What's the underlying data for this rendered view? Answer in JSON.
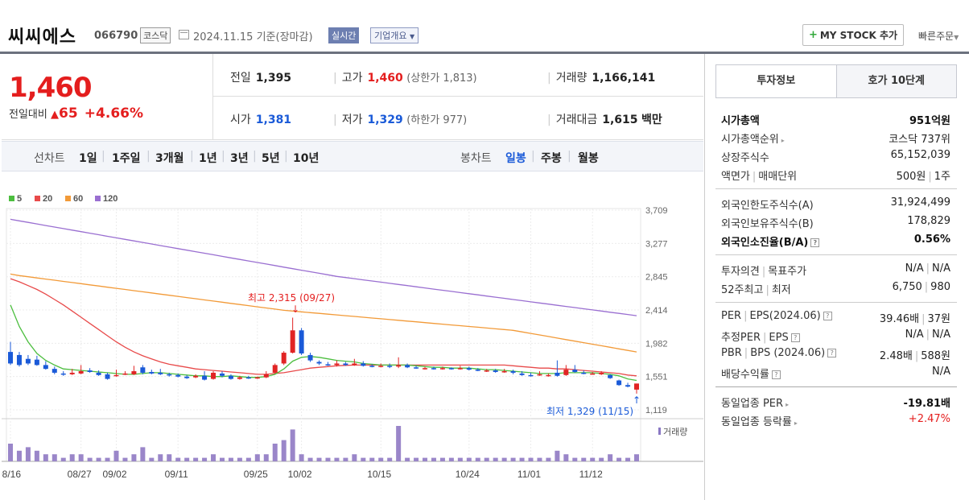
{
  "header": {
    "name": "씨씨에스",
    "code": "066790",
    "market": "코스닥",
    "date": "2024.11.15",
    "basis": "기준(장마감)",
    "realtime": "실시간",
    "company_info": "기업개요",
    "my_stock": "MY STOCK 추가",
    "quick_order": "빠른주문"
  },
  "summary": {
    "price": "1,460",
    "change_label": "전일대비",
    "change_value": "65",
    "change_pct": "+4.66%",
    "prev_label": "전일",
    "prev": "1,395",
    "high_label": "고가",
    "high": "1,460",
    "upper_limit": "(상한가 1,813)",
    "volume_label": "거래량",
    "volume": "1,166,141",
    "open_label": "시가",
    "open": "1,381",
    "low_label": "저가",
    "low": "1,329",
    "lower_limit": "(하한가 977)",
    "amount_label": "거래대금",
    "amount": "1,615",
    "amount_unit": "백만"
  },
  "periods": {
    "line_label": "선차트",
    "line_options": [
      "1일",
      "1주일",
      "3개월",
      "1년",
      "3년",
      "5년",
      "10년"
    ],
    "candle_label": "봉차트",
    "candle_options": [
      "일봉",
      "주봉",
      "월봉"
    ],
    "selected": "일봉"
  },
  "chart_data": {
    "type": "line",
    "legend": [
      {
        "name": "5",
        "color": "#4cbe3f"
      },
      {
        "name": "20",
        "color": "#e84a4a"
      },
      {
        "name": "60",
        "color": "#f29a38"
      },
      {
        "name": "120",
        "color": "#9a6fd1"
      }
    ],
    "y_ticks": [
      "3,709",
      "3,277",
      "2,845",
      "2,414",
      "1,982",
      "1,551",
      "1,119"
    ],
    "ylim": [
      1119,
      3709
    ],
    "x_labels": [
      "08/16",
      "08/27",
      "09/02",
      "09/11",
      "09/25",
      "10/02",
      "10/15",
      "10/24",
      "11/01",
      "11/12"
    ],
    "high_note": "최고 2,315 (09/27)",
    "low_note": "최저 1,329 (11/15)",
    "volume_label": "거래량",
    "candles": [
      {
        "o": 1870,
        "c": 1720,
        "h": 2000,
        "l": 1700
      },
      {
        "o": 1830,
        "c": 1700,
        "h": 1870,
        "l": 1680
      },
      {
        "o": 1780,
        "c": 1720,
        "h": 1830,
        "l": 1700
      },
      {
        "o": 1770,
        "c": 1700,
        "h": 1820,
        "l": 1690
      },
      {
        "o": 1700,
        "c": 1650,
        "h": 1750,
        "l": 1640
      },
      {
        "o": 1650,
        "c": 1600,
        "h": 1680,
        "l": 1580
      },
      {
        "o": 1590,
        "c": 1580,
        "h": 1620,
        "l": 1560
      },
      {
        "o": 1580,
        "c": 1600,
        "h": 1650,
        "l": 1570
      },
      {
        "o": 1590,
        "c": 1620,
        "h": 1700,
        "l": 1580
      },
      {
        "o": 1630,
        "c": 1610,
        "h": 1660,
        "l": 1600
      },
      {
        "o": 1600,
        "c": 1570,
        "h": 1630,
        "l": 1560
      },
      {
        "o": 1580,
        "c": 1520,
        "h": 1600,
        "l": 1510
      },
      {
        "o": 1560,
        "c": 1570,
        "h": 1640,
        "l": 1550
      },
      {
        "o": 1580,
        "c": 1590,
        "h": 1620,
        "l": 1570
      },
      {
        "o": 1580,
        "c": 1620,
        "h": 1690,
        "l": 1570
      },
      {
        "o": 1670,
        "c": 1600,
        "h": 1700,
        "l": 1580
      },
      {
        "o": 1610,
        "c": 1590,
        "h": 1640,
        "l": 1580
      },
      {
        "o": 1600,
        "c": 1580,
        "h": 1650,
        "l": 1570
      },
      {
        "o": 1580,
        "c": 1570,
        "h": 1600,
        "l": 1550
      },
      {
        "o": 1570,
        "c": 1550,
        "h": 1590,
        "l": 1540
      },
      {
        "o": 1550,
        "c": 1530,
        "h": 1570,
        "l": 1520
      },
      {
        "o": 1540,
        "c": 1560,
        "h": 1580,
        "l": 1530
      },
      {
        "o": 1560,
        "c": 1510,
        "h": 1620,
        "l": 1500
      },
      {
        "o": 1520,
        "c": 1600,
        "h": 1620,
        "l": 1510
      },
      {
        "o": 1590,
        "c": 1560,
        "h": 1620,
        "l": 1540
      },
      {
        "o": 1560,
        "c": 1520,
        "h": 1580,
        "l": 1510
      },
      {
        "o": 1520,
        "c": 1540,
        "h": 1560,
        "l": 1510
      },
      {
        "o": 1540,
        "c": 1530,
        "h": 1560,
        "l": 1520
      },
      {
        "o": 1530,
        "c": 1540,
        "h": 1550,
        "l": 1520
      },
      {
        "o": 1540,
        "c": 1580,
        "h": 1620,
        "l": 1530
      },
      {
        "o": 1600,
        "c": 1700,
        "h": 1720,
        "l": 1590
      },
      {
        "o": 1720,
        "c": 1860,
        "h": 1880,
        "l": 1700
      },
      {
        "o": 1860,
        "c": 2150,
        "h": 2315,
        "l": 1850
      },
      {
        "o": 2150,
        "c": 1850,
        "h": 2180,
        "l": 1830
      },
      {
        "o": 1830,
        "c": 1760,
        "h": 1860,
        "l": 1740
      },
      {
        "o": 1740,
        "c": 1720,
        "h": 1760,
        "l": 1700
      },
      {
        "o": 1710,
        "c": 1700,
        "h": 1740,
        "l": 1690
      },
      {
        "o": 1700,
        "c": 1720,
        "h": 1760,
        "l": 1680
      },
      {
        "o": 1720,
        "c": 1700,
        "h": 1740,
        "l": 1690
      },
      {
        "o": 1700,
        "c": 1720,
        "h": 1780,
        "l": 1690
      },
      {
        "o": 1720,
        "c": 1690,
        "h": 1750,
        "l": 1680
      },
      {
        "o": 1690,
        "c": 1680,
        "h": 1710,
        "l": 1670
      },
      {
        "o": 1680,
        "c": 1690,
        "h": 1720,
        "l": 1670
      },
      {
        "o": 1690,
        "c": 1680,
        "h": 1720,
        "l": 1660
      },
      {
        "o": 1680,
        "c": 1700,
        "h": 1800,
        "l": 1660
      },
      {
        "o": 1700,
        "c": 1670,
        "h": 1720,
        "l": 1660
      },
      {
        "o": 1670,
        "c": 1660,
        "h": 1690,
        "l": 1650
      },
      {
        "o": 1660,
        "c": 1660,
        "h": 1680,
        "l": 1640
      },
      {
        "o": 1660,
        "c": 1650,
        "h": 1680,
        "l": 1640
      },
      {
        "o": 1650,
        "c": 1660,
        "h": 1680,
        "l": 1640
      },
      {
        "o": 1660,
        "c": 1650,
        "h": 1670,
        "l": 1640
      },
      {
        "o": 1650,
        "c": 1660,
        "h": 1690,
        "l": 1640
      },
      {
        "o": 1660,
        "c": 1640,
        "h": 1680,
        "l": 1630
      },
      {
        "o": 1640,
        "c": 1630,
        "h": 1660,
        "l": 1620
      },
      {
        "o": 1630,
        "c": 1630,
        "h": 1650,
        "l": 1610
      },
      {
        "o": 1630,
        "c": 1610,
        "h": 1650,
        "l": 1600
      },
      {
        "o": 1610,
        "c": 1620,
        "h": 1650,
        "l": 1600
      },
      {
        "o": 1620,
        "c": 1600,
        "h": 1640,
        "l": 1580
      },
      {
        "o": 1590,
        "c": 1570,
        "h": 1620,
        "l": 1560
      },
      {
        "o": 1570,
        "c": 1560,
        "h": 1600,
        "l": 1550
      },
      {
        "o": 1570,
        "c": 1580,
        "h": 1620,
        "l": 1560
      },
      {
        "o": 1560,
        "c": 1570,
        "h": 1590,
        "l": 1550
      },
      {
        "o": 1600,
        "c": 1560,
        "h": 1760,
        "l": 1550
      },
      {
        "o": 1570,
        "c": 1640,
        "h": 1700,
        "l": 1560
      },
      {
        "o": 1640,
        "c": 1610,
        "h": 1700,
        "l": 1600
      },
      {
        "o": 1600,
        "c": 1590,
        "h": 1630,
        "l": 1580
      },
      {
        "o": 1590,
        "c": 1590,
        "h": 1610,
        "l": 1580
      },
      {
        "o": 1580,
        "c": 1600,
        "h": 1620,
        "l": 1570
      },
      {
        "o": 1570,
        "c": 1530,
        "h": 1580,
        "l": 1520
      },
      {
        "o": 1500,
        "c": 1440,
        "h": 1510,
        "l": 1430
      },
      {
        "o": 1440,
        "c": 1420,
        "h": 1470,
        "l": 1410
      },
      {
        "o": 1381,
        "c": 1460,
        "h": 1460,
        "l": 1329
      }
    ],
    "volumes": [
      5,
      3,
      4,
      3,
      2,
      2,
      1,
      2,
      2,
      1,
      1,
      1,
      3,
      1,
      2,
      4,
      1,
      2,
      2,
      1,
      1,
      1,
      1,
      2,
      1,
      1,
      1,
      1,
      2,
      2,
      5,
      6,
      9,
      2,
      1,
      1,
      1,
      1,
      1,
      2,
      1,
      1,
      1,
      1,
      10,
      1,
      1,
      1,
      1,
      1,
      1,
      1,
      1,
      1,
      1,
      1,
      1,
      1,
      1,
      1,
      1,
      1,
      3,
      2,
      1,
      1,
      1,
      1,
      2,
      1,
      1,
      2
    ],
    "ma5": [
      2480,
      2200,
      2000,
      1850,
      1760,
      1700,
      1650,
      1640,
      1630,
      1620,
      1610,
      1600,
      1590,
      1580,
      1580,
      1590,
      1600,
      1600,
      1590,
      1580,
      1570,
      1560,
      1560,
      1550,
      1550,
      1560,
      1550,
      1540,
      1540,
      1550,
      1580,
      1650,
      1750,
      1800,
      1810,
      1800,
      1780,
      1760,
      1750,
      1740,
      1720,
      1710,
      1700,
      1700,
      1700,
      1700,
      1690,
      1680,
      1670,
      1670,
      1660,
      1660,
      1660,
      1650,
      1640,
      1640,
      1630,
      1620,
      1610,
      1600,
      1590,
      1590,
      1590,
      1600,
      1600,
      1600,
      1600,
      1590,
      1580,
      1560,
      1520,
      1500
    ],
    "ma20": [
      2820,
      2780,
      2730,
      2680,
      2620,
      2550,
      2480,
      2400,
      2320,
      2240,
      2160,
      2080,
      2000,
      1930,
      1870,
      1820,
      1780,
      1740,
      1710,
      1690,
      1670,
      1650,
      1640,
      1630,
      1620,
      1610,
      1600,
      1590,
      1580,
      1580,
      1590,
      1600,
      1620,
      1640,
      1660,
      1670,
      1680,
      1690,
      1695,
      1700,
      1700,
      1700,
      1700,
      1700,
      1700,
      1700,
      1700,
      1700,
      1700,
      1700,
      1700,
      1700,
      1700,
      1700,
      1700,
      1700,
      1700,
      1690,
      1680,
      1670,
      1660,
      1660,
      1650,
      1650,
      1640,
      1630,
      1620,
      1610,
      1600,
      1590,
      1570,
      1560
    ],
    "ma60": [
      2880,
      2860,
      2845,
      2830,
      2815,
      2800,
      2785,
      2770,
      2755,
      2740,
      2725,
      2710,
      2695,
      2680,
      2665,
      2650,
      2635,
      2620,
      2605,
      2590,
      2575,
      2560,
      2545,
      2530,
      2515,
      2500,
      2485,
      2470,
      2455,
      2440,
      2425,
      2410,
      2400,
      2390,
      2380,
      2370,
      2360,
      2350,
      2340,
      2330,
      2320,
      2310,
      2300,
      2290,
      2280,
      2270,
      2260,
      2250,
      2240,
      2230,
      2220,
      2210,
      2200,
      2190,
      2180,
      2170,
      2160,
      2150,
      2130,
      2110,
      2090,
      2070,
      2050,
      2030,
      2010,
      1990,
      1970,
      1950,
      1930,
      1910,
      1890,
      1870
    ],
    "ma120": [
      3590,
      3570,
      3550,
      3530,
      3510,
      3490,
      3470,
      3450,
      3430,
      3410,
      3390,
      3370,
      3350,
      3330,
      3310,
      3290,
      3270,
      3250,
      3230,
      3210,
      3190,
      3170,
      3150,
      3130,
      3110,
      3090,
      3070,
      3050,
      3030,
      3010,
      2990,
      2970,
      2950,
      2930,
      2910,
      2890,
      2870,
      2850,
      2835,
      2820,
      2805,
      2790,
      2775,
      2760,
      2745,
      2730,
      2715,
      2700,
      2685,
      2670,
      2655,
      2640,
      2625,
      2610,
      2595,
      2580,
      2565,
      2550,
      2535,
      2520,
      2505,
      2490,
      2475,
      2460,
      2445,
      2430,
      2415,
      2400,
      2385,
      2370,
      2355,
      2340
    ]
  },
  "panel": {
    "tab_invest": "투자정보",
    "tab_orderbook": "호가 10단계",
    "market_cap_label": "시가총액",
    "market_cap": "951억원",
    "cap_rank_label": "시가총액순위",
    "cap_rank": "코스닥 737위",
    "shares_label": "상장주식수",
    "shares": "65,152,039",
    "face_label": "액면가",
    "trade_unit_label": "매매단위",
    "face": "500원",
    "trade_unit": "1주",
    "foreign_limit_label": "외국인한도주식수(A)",
    "foreign_limit": "31,924,499",
    "foreign_hold_label": "외국인보유주식수(B)",
    "foreign_hold": "178,829",
    "foreign_ratio_label": "외국인소진율(B/A)",
    "foreign_ratio": "0.56%",
    "opinion_label": "투자의견",
    "target_label": "목표주가",
    "opinion": "N/A",
    "target": "N/A",
    "w52_label": "52주최고",
    "w52_low_label": "최저",
    "w52_high": "6,750",
    "w52_low": "980",
    "per_label": "PER",
    "eps_label": "EPS(2024.06)",
    "per": "39.46배",
    "eps": "37원",
    "est_per_label": "추정PER",
    "est_eps_label": "EPS",
    "est_per": "N/A",
    "est_eps": "N/A",
    "pbr_label": "PBR",
    "bps_label": "BPS (2024.06)",
    "pbr": "2.48배",
    "bps": "588원",
    "div_label": "배당수익률",
    "div": "N/A",
    "sector_per_label": "동일업종 PER",
    "sector_per": "-19.81배",
    "sector_rate_label": "동일업종 등락률",
    "sector_rate": "+2.47%"
  }
}
